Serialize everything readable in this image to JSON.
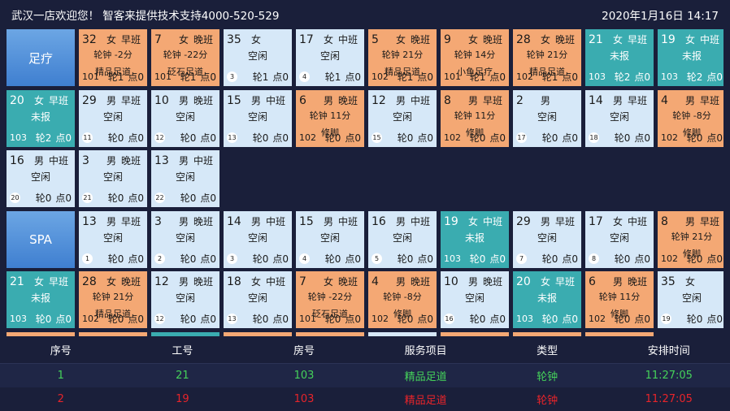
{
  "header": {
    "title": "武汉一店欢迎您！ 智客来提供技术支持4000-520-529",
    "datetime": "2020年1月16日  14:17"
  },
  "sections": [
    {
      "label": "足疗"
    },
    {
      "label": "SPA"
    }
  ],
  "cells": [
    {
      "num": "32",
      "gender": "女",
      "shift": "早班",
      "status": "busy",
      "line1": "轮钟 -2分",
      "line2": "精品足道",
      "room": "101",
      "lun": "轮1",
      "dian": "点0"
    },
    {
      "num": "7",
      "gender": "女",
      "shift": "晚班",
      "status": "busy",
      "line1": "轮钟 -22分",
      "line2": "砭石足道",
      "room": "101",
      "lun": "轮1",
      "dian": "点0"
    },
    {
      "num": "35",
      "gender": "女",
      "shift": "",
      "status": "idle",
      "line1": "空闲",
      "seq": "3",
      "lun": "轮1",
      "dian": "点0"
    },
    {
      "num": "17",
      "gender": "女",
      "shift": "中班",
      "status": "idle",
      "line1": "空闲",
      "seq": "4",
      "lun": "轮1",
      "dian": "点0"
    },
    {
      "num": "5",
      "gender": "女",
      "shift": "晚班",
      "status": "busy",
      "line1": "轮钟 21分",
      "line2": "精品足道",
      "room": "102",
      "lun": "轮1",
      "dian": "点0"
    },
    {
      "num": "9",
      "gender": "女",
      "shift": "晚班",
      "status": "busy",
      "line1": "轮钟 14分",
      "line2": "小鱼足疗",
      "room": "101",
      "lun": "轮1",
      "dian": "点0"
    },
    {
      "num": "28",
      "gender": "女",
      "shift": "晚班",
      "status": "busy",
      "line1": "轮钟 21分",
      "line2": "精品足道",
      "room": "102",
      "lun": "轮1",
      "dian": "点0"
    },
    {
      "num": "21",
      "gender": "女",
      "shift": "早班",
      "status": "none",
      "line1": "未报",
      "room": "103",
      "lun": "轮2",
      "dian": "点0"
    },
    {
      "num": "19",
      "gender": "女",
      "shift": "中班",
      "status": "none",
      "line1": "未报",
      "room": "103",
      "lun": "轮2",
      "dian": "点0"
    },
    {
      "num": "20",
      "gender": "女",
      "shift": "早班",
      "status": "none",
      "line1": "未报",
      "room": "103",
      "lun": "轮2",
      "dian": "点0"
    },
    {
      "num": "29",
      "gender": "男",
      "shift": "早班",
      "status": "idle",
      "line1": "空闲",
      "seq": "11",
      "lun": "轮0",
      "dian": "点0"
    },
    {
      "num": "10",
      "gender": "男",
      "shift": "晚班",
      "status": "idle",
      "line1": "空闲",
      "seq": "12",
      "lun": "轮0",
      "dian": "点0"
    },
    {
      "num": "15",
      "gender": "男",
      "shift": "中班",
      "status": "idle",
      "line1": "空闲",
      "seq": "13",
      "lun": "轮0",
      "dian": "点0"
    },
    {
      "num": "6",
      "gender": "男",
      "shift": "晚班",
      "status": "busy",
      "line1": "轮钟 11分",
      "line2": "修脚",
      "room": "102",
      "lun": "轮0",
      "dian": "点0"
    },
    {
      "num": "12",
      "gender": "男",
      "shift": "中班",
      "status": "idle",
      "line1": "空闲",
      "seq": "15",
      "lun": "轮0",
      "dian": "点0"
    },
    {
      "num": "8",
      "gender": "男",
      "shift": "早班",
      "status": "busy",
      "line1": "轮钟 11分",
      "line2": "修脚",
      "room": "102",
      "lun": "轮0",
      "dian": "点0"
    },
    {
      "num": "2",
      "gender": "男",
      "shift": "",
      "status": "idle",
      "line1": "空闲",
      "seq": "17",
      "lun": "轮0",
      "dian": "点0"
    },
    {
      "num": "14",
      "gender": "男",
      "shift": "早班",
      "status": "idle",
      "line1": "空闲",
      "seq": "18",
      "lun": "轮0",
      "dian": "点0"
    },
    {
      "num": "4",
      "gender": "男",
      "shift": "早班",
      "status": "busy",
      "line1": "轮钟 -8分",
      "line2": "修脚",
      "room": "102",
      "lun": "轮0",
      "dian": "点0"
    },
    {
      "num": "16",
      "gender": "男",
      "shift": "中班",
      "status": "idle",
      "line1": "空闲",
      "seq": "20",
      "lun": "轮0",
      "dian": "点0"
    },
    {
      "num": "3",
      "gender": "男",
      "shift": "晚班",
      "status": "idle",
      "line1": "空闲",
      "seq": "21",
      "lun": "轮0",
      "dian": "点0"
    },
    {
      "num": "13",
      "gender": "男",
      "shift": "中班",
      "status": "idle",
      "line1": "空闲",
      "seq": "22",
      "lun": "轮0",
      "dian": "点0"
    },
    {
      "num": "13",
      "gender": "男",
      "shift": "早班",
      "status": "idle",
      "line1": "空闲",
      "seq": "1",
      "lun": "轮0",
      "dian": "点0"
    },
    {
      "num": "3",
      "gender": "男",
      "shift": "晚班",
      "status": "idle",
      "line1": "空闲",
      "seq": "2",
      "lun": "轮0",
      "dian": "点0"
    },
    {
      "num": "14",
      "gender": "男",
      "shift": "中班",
      "status": "idle",
      "line1": "空闲",
      "seq": "3",
      "lun": "轮0",
      "dian": "点0"
    },
    {
      "num": "15",
      "gender": "男",
      "shift": "中班",
      "status": "idle",
      "line1": "空闲",
      "seq": "4",
      "lun": "轮0",
      "dian": "点0"
    },
    {
      "num": "16",
      "gender": "男",
      "shift": "中班",
      "status": "idle",
      "line1": "空闲",
      "seq": "5",
      "lun": "轮0",
      "dian": "点0"
    },
    {
      "num": "19",
      "gender": "女",
      "shift": "中班",
      "status": "none",
      "line1": "未报",
      "room": "103",
      "lun": "轮0",
      "dian": "点0"
    },
    {
      "num": "29",
      "gender": "男",
      "shift": "早班",
      "status": "idle",
      "line1": "空闲",
      "seq": "7",
      "lun": "轮0",
      "dian": "点0"
    },
    {
      "num": "17",
      "gender": "女",
      "shift": "中班",
      "status": "idle",
      "line1": "空闲",
      "seq": "8",
      "lun": "轮0",
      "dian": "点0"
    },
    {
      "num": "8",
      "gender": "男",
      "shift": "早班",
      "status": "busy",
      "line1": "轮钟 21分",
      "line2": "修脚",
      "room": "102",
      "lun": "轮0",
      "dian": "点0"
    },
    {
      "num": "21",
      "gender": "女",
      "shift": "早班",
      "status": "none",
      "line1": "未报",
      "room": "103",
      "lun": "轮0",
      "dian": "点0"
    },
    {
      "num": "28",
      "gender": "女",
      "shift": "晚班",
      "status": "busy",
      "line1": "轮钟 21分",
      "line2": "精品足道",
      "room": "102",
      "lun": "轮0",
      "dian": "点0"
    },
    {
      "num": "12",
      "gender": "男",
      "shift": "晚班",
      "status": "idle",
      "line1": "空闲",
      "seq": "12",
      "lun": "轮0",
      "dian": "点0"
    },
    {
      "num": "18",
      "gender": "女",
      "shift": "中班",
      "status": "idle",
      "line1": "空闲",
      "seq": "13",
      "lun": "轮0",
      "dian": "点0"
    },
    {
      "num": "7",
      "gender": "女",
      "shift": "晚班",
      "status": "busy",
      "line1": "轮钟 -22分",
      "line2": "砭石足道",
      "room": "101",
      "lun": "轮0",
      "dian": "点0"
    },
    {
      "num": "4",
      "gender": "男",
      "shift": "晚班",
      "status": "busy",
      "line1": "轮钟 -8分",
      "line2": "修脚",
      "room": "102",
      "lun": "轮0",
      "dian": "点0"
    },
    {
      "num": "10",
      "gender": "男",
      "shift": "晚班",
      "status": "idle",
      "line1": "空闲",
      "seq": "16",
      "lun": "轮0",
      "dian": "点0"
    },
    {
      "num": "20",
      "gender": "女",
      "shift": "早班",
      "status": "none",
      "line1": "未报",
      "room": "103",
      "lun": "轮0",
      "dian": "点0"
    },
    {
      "num": "6",
      "gender": "男",
      "shift": "晚班",
      "status": "busy",
      "line1": "轮钟 11分",
      "line2": "修脚",
      "room": "102",
      "lun": "轮0",
      "dian": "点0"
    },
    {
      "num": "35",
      "gender": "女",
      "shift": "",
      "status": "idle",
      "line1": "空闲",
      "seq": "19",
      "lun": "轮0",
      "dian": "点0"
    }
  ],
  "partial_row": [
    "busy",
    "busy",
    "none",
    "busy",
    "busy",
    "idle",
    "busy",
    "busy",
    "busy"
  ],
  "table": {
    "headers": [
      "序号",
      "工号",
      "房号",
      "服务项目",
      "类型",
      "安排时间"
    ],
    "rows": [
      {
        "values": [
          "1",
          "21",
          "103",
          "精品足道",
          "轮钟",
          "11:27:05"
        ],
        "color": "#45d15a"
      },
      {
        "values": [
          "2",
          "19",
          "103",
          "精品足道",
          "轮钟",
          "11:27:05"
        ],
        "color": "#e8242a"
      }
    ]
  },
  "colors": {
    "background": "#1a1f3a",
    "idle": "#d6e8f8",
    "busy": "#f4a874",
    "none": "#3aacb0",
    "section": "#5b95dc",
    "green": "#45d15a",
    "red": "#e8242a"
  }
}
